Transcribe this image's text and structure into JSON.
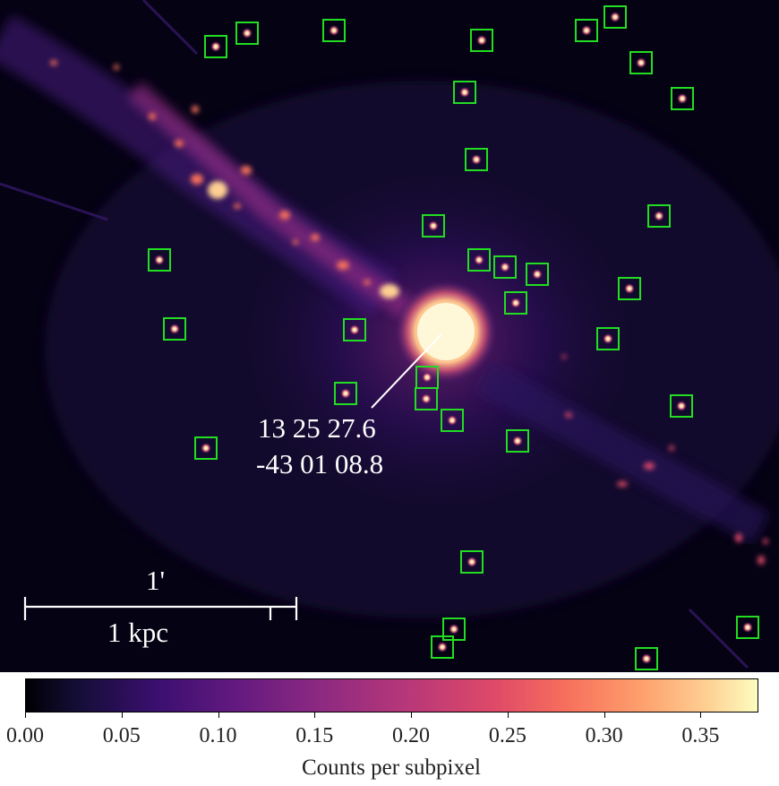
{
  "annotation": {
    "ra": "13 25 27.6",
    "dec": "-43 01 08.8"
  },
  "scale_bar": {
    "angular_label": "1'",
    "physical_label": "1 kpc"
  },
  "colorbar": {
    "label": "Counts per subpixel",
    "ticks": [
      "0.00",
      "0.05",
      "0.10",
      "0.15",
      "0.20",
      "0.25",
      "0.30",
      "0.35"
    ],
    "colormap": "magma",
    "range": [
      0.0,
      0.38
    ]
  },
  "colors": {
    "source_box": "#22dd22",
    "background": "#000004"
  }
}
